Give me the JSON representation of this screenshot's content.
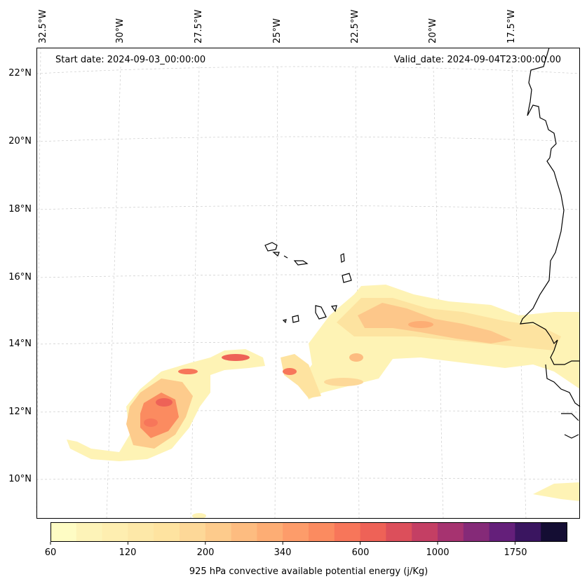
{
  "map": {
    "start_date": "Start date: 2024-09-03_00:00:00",
    "valid_date": "Valid_date: 2024-09-04T23:00:00.00",
    "lon_labels": [
      "32.5°W",
      "30°W",
      "27.5°W",
      "25°W",
      "22.5°W",
      "20°W",
      "17.5°W"
    ],
    "lat_labels": [
      "22°N",
      "20°N",
      "18°N",
      "16°N",
      "14°N",
      "12°N",
      "10°N"
    ],
    "gridlines": true,
    "coastline_color": "#000000"
  },
  "colorbar": {
    "label": "925 hPa convective available potential energy (j/Kg)",
    "tick_labels": [
      "60",
      "120",
      "200",
      "340",
      "600",
      "1000",
      "1750"
    ],
    "colors": [
      "#fefcc4",
      "#fdf3b8",
      "#feeeb0",
      "#fde8a8",
      "#fee3a0",
      "#fdd898",
      "#fdcb8c",
      "#fdbc80",
      "#fdad74",
      "#fd9c6a",
      "#fb8b60",
      "#f7765a",
      "#ee6257",
      "#dc4f5b",
      "#c43f64",
      "#a63370",
      "#852a78",
      "#641f7a",
      "#3a1560",
      "#140d33"
    ]
  }
}
